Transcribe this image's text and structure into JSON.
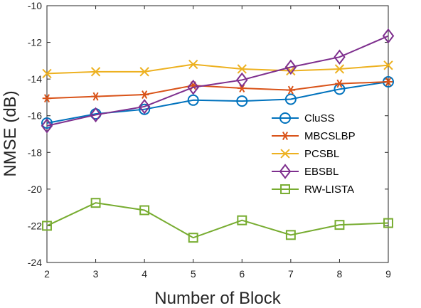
{
  "chart_data": {
    "type": "line",
    "xlabel": "Number of Block",
    "ylabel": "NMSE (dB)",
    "xlim": [
      2,
      9
    ],
    "ylim": [
      -24,
      -10
    ],
    "xticks": [
      2,
      3,
      4,
      5,
      6,
      7,
      8,
      9
    ],
    "yticks": [
      -10,
      -12,
      -14,
      -16,
      -18,
      -20,
      -22,
      -24
    ],
    "grid": false,
    "legend_position": "center-right",
    "x": [
      2,
      3,
      4,
      5,
      6,
      7,
      8,
      9
    ],
    "series": [
      {
        "name": "CluSS",
        "color": "#0072BD",
        "marker": "circle",
        "values": [
          -16.4,
          -15.9,
          -15.65,
          -15.15,
          -15.2,
          -15.1,
          -14.55,
          -14.15
        ]
      },
      {
        "name": "MBCSLBP",
        "color": "#D95319",
        "marker": "asterisk",
        "values": [
          -15.05,
          -14.95,
          -14.85,
          -14.35,
          -14.5,
          -14.6,
          -14.25,
          -14.15
        ]
      },
      {
        "name": "PCSBL",
        "color": "#EDB120",
        "marker": "x",
        "values": [
          -13.7,
          -13.6,
          -13.6,
          -13.2,
          -13.45,
          -13.55,
          -13.45,
          -13.25
        ]
      },
      {
        "name": "EBSBL",
        "color": "#7E2F8E",
        "marker": "diamond",
        "values": [
          -16.55,
          -15.95,
          -15.5,
          -14.45,
          -14.05,
          -13.35,
          -12.8,
          -11.65
        ]
      },
      {
        "name": "RW-LISTA",
        "color": "#77AC30",
        "marker": "square",
        "values": [
          -22.0,
          -20.75,
          -21.15,
          -22.65,
          -21.7,
          -22.5,
          -21.95,
          -21.85
        ]
      }
    ]
  }
}
